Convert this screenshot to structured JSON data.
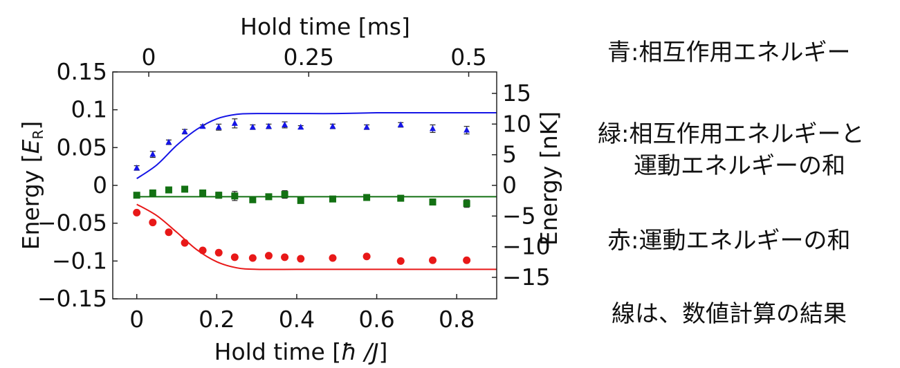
{
  "chart_data": {
    "type": "scatter",
    "xlabel_bottom": "Hold time [",
    "xlabel_bottom_unit": "ħ /J",
    "xlabel_bottom_close": "]",
    "xlabel_top": "Hold time [ms]",
    "ylabel_left_prefix": "Energy [",
    "ylabel_left_unit": "E",
    "ylabel_left_sub": "R",
    "ylabel_left_close": "]",
    "ylabel_right": "Energy [nK]",
    "xlim": [
      -0.06,
      0.9
    ],
    "ylim": [
      -0.15,
      0.15
    ],
    "right_ylim_nK": [
      -18.5,
      18.5
    ],
    "x_ticks": [
      "0",
      "0.2",
      "0.4",
      "0.6",
      "0.8"
    ],
    "x_tick_values": [
      0,
      0.2,
      0.4,
      0.6,
      0.8
    ],
    "y_ticks": [
      "0.15",
      "0.1",
      "0.05",
      "0",
      "−0.05",
      "−0.1",
      "−0.15"
    ],
    "y_tick_values": [
      0.15,
      0.1,
      0.05,
      0,
      -0.05,
      -0.1,
      -0.15
    ],
    "top_ticks": [
      "0",
      "0.25",
      "0.5"
    ],
    "top_tick_x_values": [
      0.03,
      0.43,
      0.83
    ],
    "right_ticks": [
      "15",
      "10",
      "5",
      "0",
      "−5",
      "−10",
      "−15"
    ],
    "right_tick_values": [
      15,
      10,
      5,
      0,
      -5,
      -10,
      -15
    ],
    "series": [
      {
        "name": "interaction",
        "color": "#1515e6",
        "marker": "triangle",
        "x": [
          0.0,
          0.04,
          0.08,
          0.12,
          0.165,
          0.205,
          0.245,
          0.29,
          0.33,
          0.37,
          0.41,
          0.49,
          0.575,
          0.66,
          0.74,
          0.825
        ],
        "y": [
          0.023,
          0.041,
          0.057,
          0.071,
          0.078,
          0.077,
          0.082,
          0.077,
          0.078,
          0.08,
          0.077,
          0.078,
          0.077,
          0.08,
          0.075,
          0.073
        ],
        "err": [
          0.003,
          0.004,
          0.003,
          0.003,
          0.002,
          0.004,
          0.006,
          0.003,
          0.003,
          0.004,
          0.002,
          0.003,
          0.003,
          0.003,
          0.005,
          0.005
        ],
        "fit_x": [
          0.0,
          0.05,
          0.1,
          0.15,
          0.2,
          0.25,
          0.3,
          0.4,
          0.5,
          0.6,
          0.7,
          0.8,
          0.9
        ],
        "fit_y": [
          0.009,
          0.027,
          0.053,
          0.074,
          0.088,
          0.094,
          0.095,
          0.095,
          0.095,
          0.096,
          0.096,
          0.096,
          0.096
        ]
      },
      {
        "name": "total",
        "color": "#137113",
        "marker": "square",
        "x": [
          0.0,
          0.04,
          0.08,
          0.12,
          0.165,
          0.205,
          0.245,
          0.29,
          0.33,
          0.37,
          0.41,
          0.49,
          0.575,
          0.66,
          0.74,
          0.825
        ],
        "y": [
          -0.013,
          -0.01,
          -0.006,
          -0.005,
          -0.01,
          -0.013,
          -0.014,
          -0.019,
          -0.015,
          -0.012,
          -0.02,
          -0.018,
          -0.016,
          -0.017,
          -0.022,
          -0.024
        ],
        "err": [
          0.002,
          0.004,
          0.003,
          0.002,
          0.003,
          0.004,
          0.006,
          0.003,
          0.003,
          0.005,
          0.002,
          0.002,
          0.002,
          0.002,
          0.004,
          0.005
        ],
        "fit_x": [
          0.0,
          0.9
        ],
        "fit_y": [
          -0.015,
          -0.015
        ]
      },
      {
        "name": "kinetic",
        "color": "#e81818",
        "marker": "circle",
        "x": [
          0.0,
          0.04,
          0.08,
          0.12,
          0.165,
          0.205,
          0.245,
          0.29,
          0.33,
          0.37,
          0.41,
          0.49,
          0.575,
          0.66,
          0.74,
          0.825
        ],
        "y": [
          -0.036,
          -0.049,
          -0.062,
          -0.076,
          -0.086,
          -0.089,
          -0.095,
          -0.096,
          -0.093,
          -0.095,
          -0.097,
          -0.096,
          -0.094,
          -0.1,
          -0.099,
          -0.099
        ],
        "err": [
          0.002,
          0.002,
          0.002,
          0.002,
          0.002,
          0.002,
          0.003,
          0.002,
          0.002,
          0.002,
          0.002,
          0.002,
          0.002,
          0.002,
          0.003,
          0.002
        ],
        "fit_x": [
          0.0,
          0.05,
          0.1,
          0.15,
          0.2,
          0.25,
          0.3,
          0.4,
          0.5,
          0.6,
          0.7,
          0.8,
          0.9
        ],
        "fit_y": [
          -0.025,
          -0.04,
          -0.062,
          -0.085,
          -0.101,
          -0.109,
          -0.111,
          -0.111,
          -0.111,
          -0.111,
          -0.111,
          -0.111,
          -0.111
        ]
      }
    ]
  },
  "legend": {
    "blue": "青:相互作用エネルギー",
    "green_1": "緑:相互作用エネルギーと",
    "green_2": "運動エネルギーの和",
    "red": "赤:運動エネルギーの和",
    "lines": "線は、数値計算の結果"
  }
}
